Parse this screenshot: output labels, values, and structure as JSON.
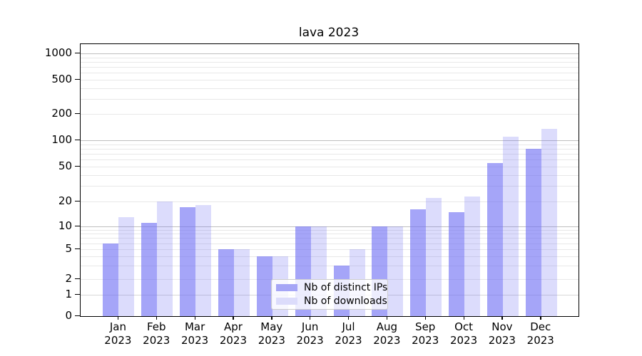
{
  "title": "lava 2023",
  "legend": [
    {
      "label": "Nb of distinct IPs",
      "series": "ips"
    },
    {
      "label": "Nb of downloads",
      "series": "downloads"
    }
  ],
  "y_axis": {
    "tick_labels": [
      "1000",
      "500",
      "200",
      "100",
      "50",
      "20",
      "10",
      "5",
      "2",
      "1",
      "0"
    ]
  },
  "x_axis": {
    "labels": [
      [
        "Jan",
        "2023"
      ],
      [
        "Feb",
        "2023"
      ],
      [
        "Mar",
        "2023"
      ],
      [
        "Apr",
        "2023"
      ],
      [
        "May",
        "2023"
      ],
      [
        "Jun",
        "2023"
      ],
      [
        "Jul",
        "2023"
      ],
      [
        "Aug",
        "2023"
      ],
      [
        "Sep",
        "2023"
      ],
      [
        "Oct",
        "2023"
      ],
      [
        "Nov",
        "2023"
      ],
      [
        "Dec",
        "2023"
      ]
    ]
  },
  "colors": {
    "bar_ips": "rgba(110,110,243,0.62)",
    "bar_downloads": "rgba(110,110,243,0.24)",
    "swatch_ips": "#a5a5f6",
    "swatch_downloads": "#dcdcfb",
    "grid_major": "#bfbfbf",
    "grid_minor": "#e8e8e8",
    "grid_one": "#d8d8d8"
  },
  "chart_data": {
    "type": "bar",
    "title": "lava 2023",
    "categories": [
      "Jan 2023",
      "Feb 2023",
      "Mar 2023",
      "Apr 2023",
      "May 2023",
      "Jun 2023",
      "Jul 2023",
      "Aug 2023",
      "Sep 2023",
      "Oct 2023",
      "Nov 2023",
      "Dec 2023"
    ],
    "series": [
      {
        "name": "Nb of distinct IPs",
        "values": [
          6,
          11,
          17,
          5,
          4,
          10,
          3,
          10,
          16,
          15,
          55,
          80
        ]
      },
      {
        "name": "Nb of downloads",
        "values": [
          13,
          20,
          18,
          5,
          4,
          10,
          5,
          10,
          22,
          23,
          110,
          135
        ]
      }
    ],
    "yscale": "symlog (linear below 1, log above)",
    "y_ticks": [
      0,
      1,
      2,
      5,
      10,
      20,
      50,
      100,
      200,
      500,
      1000
    ],
    "ylim": [
      0,
      1300
    ],
    "xlabel": "",
    "ylabel": "",
    "grid": "horizontal major+minor log gridlines",
    "legend_position": "lower center inside plot"
  }
}
